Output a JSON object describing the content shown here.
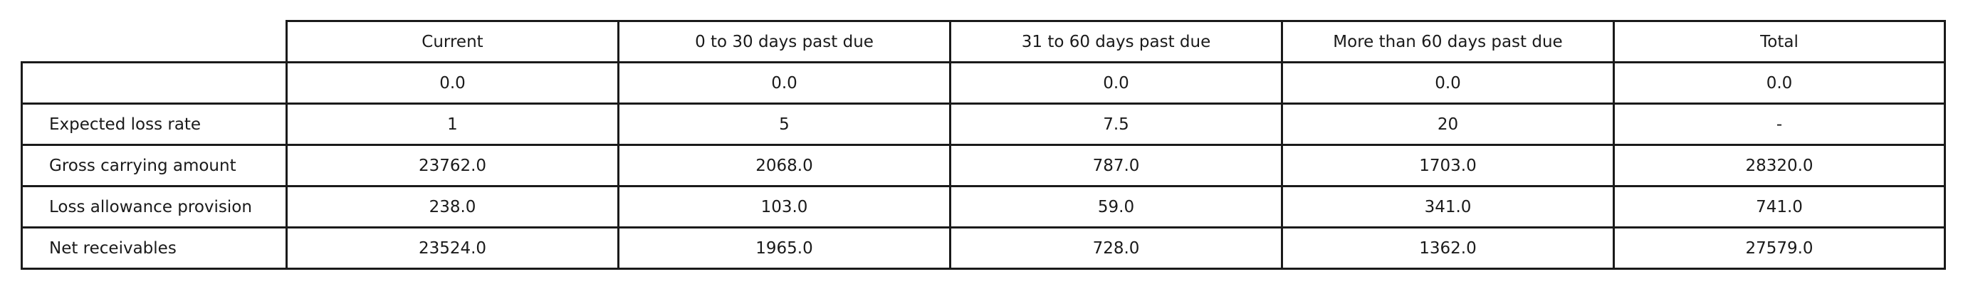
{
  "table": {
    "headers": [
      "Current",
      "0 to 30 days past due",
      "31 to 60 days past due",
      "More than 60 days past due",
      "Total"
    ],
    "rows": [
      {
        "label": "",
        "values": [
          "0.0",
          "0.0",
          "0.0",
          "0.0",
          "0.0"
        ]
      },
      {
        "label": "Expected loss rate",
        "values": [
          "1",
          "5",
          "7.5",
          "20",
          "-"
        ]
      },
      {
        "label": "Gross carrying amount",
        "values": [
          "23762.0",
          "2068.0",
          "787.0",
          "1703.0",
          "28320.0"
        ]
      },
      {
        "label": "Loss allowance provision",
        "values": [
          "238.0",
          "103.0",
          "59.0",
          "341.0",
          "741.0"
        ]
      },
      {
        "label": "Net receivables",
        "values": [
          "23524.0",
          "1965.0",
          "728.0",
          "1362.0",
          "27579.0"
        ]
      }
    ]
  }
}
